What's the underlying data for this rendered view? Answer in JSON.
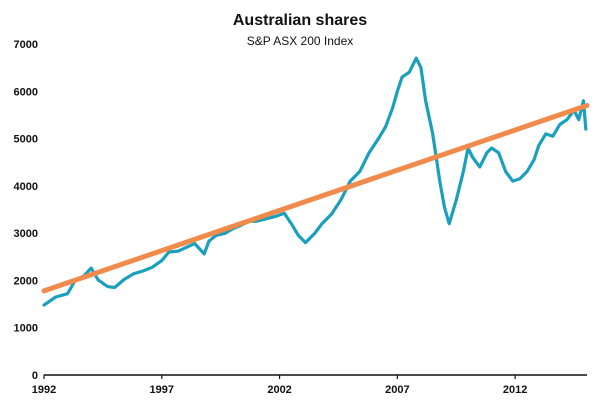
{
  "chart_data": {
    "type": "line",
    "title": "Australian shares",
    "subtitle": "S&P ASX 200 Index",
    "xlabel": "",
    "ylabel": "",
    "xlim": [
      1992.0,
      2015.05
    ],
    "ylim": [
      0,
      7000
    ],
    "x_ticks": [
      1992,
      1997,
      2002,
      2007,
      2012
    ],
    "x_tick_labels": [
      "1992",
      "1997",
      "2002",
      "2007",
      "2012"
    ],
    "y_ticks": [
      0,
      1000,
      2000,
      3000,
      4000,
      5000,
      6000,
      7000
    ],
    "y_tick_labels": [
      "0",
      "1000",
      "2000",
      "3000",
      "4000",
      "5000",
      "6000",
      "7000"
    ],
    "grid": false,
    "legend": "none",
    "series": [
      {
        "color": "#1a9fbd",
        "points": [
          [
            1992.0,
            1480
          ],
          [
            1992.5,
            1650
          ],
          [
            1993.0,
            1720
          ],
          [
            1993.3,
            1980
          ],
          [
            1993.7,
            2100
          ],
          [
            1994.0,
            2260
          ],
          [
            1994.3,
            2010
          ],
          [
            1994.7,
            1870
          ],
          [
            1995.0,
            1850
          ],
          [
            1995.4,
            2020
          ],
          [
            1995.8,
            2140
          ],
          [
            1996.2,
            2200
          ],
          [
            1996.6,
            2280
          ],
          [
            1997.0,
            2420
          ],
          [
            1997.3,
            2600
          ],
          [
            1997.7,
            2620
          ],
          [
            1998.0,
            2690
          ],
          [
            1998.4,
            2780
          ],
          [
            1998.8,
            2560
          ],
          [
            1999.0,
            2830
          ],
          [
            1999.3,
            2950
          ],
          [
            1999.7,
            3000
          ],
          [
            2000.0,
            3090
          ],
          [
            2000.3,
            3150
          ],
          [
            2000.7,
            3250
          ],
          [
            2001.0,
            3250
          ],
          [
            2001.4,
            3300
          ],
          [
            2001.8,
            3350
          ],
          [
            2002.2,
            3420
          ],
          [
            2002.5,
            3200
          ],
          [
            2002.8,
            2950
          ],
          [
            2003.1,
            2800
          ],
          [
            2003.5,
            3000
          ],
          [
            2003.8,
            3200
          ],
          [
            2004.2,
            3400
          ],
          [
            2004.6,
            3700
          ],
          [
            2005.0,
            4100
          ],
          [
            2005.4,
            4300
          ],
          [
            2005.8,
            4700
          ],
          [
            2006.2,
            5000
          ],
          [
            2006.5,
            5250
          ],
          [
            2006.8,
            5650
          ],
          [
            2007.0,
            6000
          ],
          [
            2007.2,
            6300
          ],
          [
            2007.5,
            6400
          ],
          [
            2007.8,
            6700
          ],
          [
            2008.0,
            6500
          ],
          [
            2008.2,
            5800
          ],
          [
            2008.5,
            5100
          ],
          [
            2008.8,
            4100
          ],
          [
            2009.0,
            3550
          ],
          [
            2009.2,
            3200
          ],
          [
            2009.5,
            3700
          ],
          [
            2009.8,
            4300
          ],
          [
            2010.0,
            4800
          ],
          [
            2010.2,
            4600
          ],
          [
            2010.5,
            4400
          ],
          [
            2010.8,
            4700
          ],
          [
            2011.0,
            4800
          ],
          [
            2011.3,
            4700
          ],
          [
            2011.6,
            4300
          ],
          [
            2011.9,
            4100
          ],
          [
            2012.2,
            4150
          ],
          [
            2012.5,
            4300
          ],
          [
            2012.8,
            4550
          ],
          [
            2013.0,
            4850
          ],
          [
            2013.3,
            5100
          ],
          [
            2013.6,
            5050
          ],
          [
            2013.9,
            5300
          ],
          [
            2014.2,
            5400
          ],
          [
            2014.5,
            5600
          ],
          [
            2014.7,
            5400
          ],
          [
            2014.9,
            5800
          ],
          [
            2015.0,
            5200
          ]
        ]
      },
      {
        "color": "#f08b4b",
        "points": [
          [
            1992.0,
            1780
          ],
          [
            2015.05,
            5700
          ]
        ]
      }
    ]
  }
}
